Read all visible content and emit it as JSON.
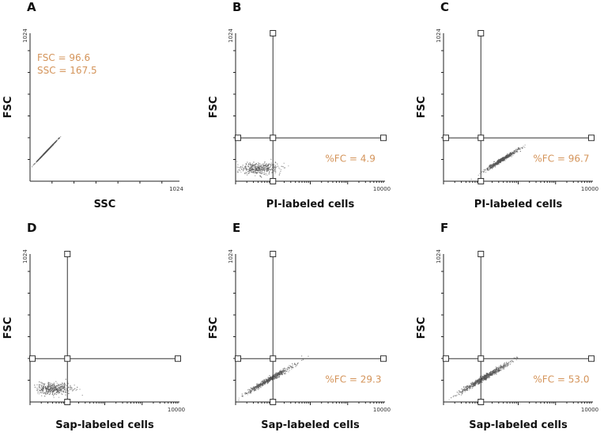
{
  "chart_data": [
    {
      "type": "scatter",
      "panel": "A",
      "xlabel": "SSC",
      "ylabel": "FSC",
      "x_scale": "linear",
      "xlim": [
        0,
        1024
      ],
      "ylim": [
        0,
        1024
      ],
      "x_max_label": "1024",
      "y_max_label": "1024",
      "annotations": [
        "FSC = 96.6",
        "SSC = 167.5"
      ],
      "population": {
        "x_center": 110,
        "y_center": 210,
        "x_spread": 95,
        "y_spread": 95,
        "shape": "diagonal",
        "n": 650
      },
      "gate": null
    },
    {
      "type": "scatter",
      "panel": "B",
      "xlabel": "PI-labeled cells",
      "ylabel": "FSC",
      "x_scale": "log",
      "xlim": [
        1,
        10000
      ],
      "ylim": [
        0,
        1024
      ],
      "x_max_label": "10000",
      "y_max_label": "1024",
      "annotations": [
        "%FC = 4.9"
      ],
      "population": {
        "x_center": 4,
        "y_center": 90,
        "x_spread": 0.5,
        "y_spread": 60,
        "shape": "flat",
        "n": 420
      },
      "gate": {
        "x": 10,
        "y": 300
      }
    },
    {
      "type": "scatter",
      "panel": "C",
      "xlabel": "PI-labeled cells",
      "ylabel": "FSC",
      "x_scale": "log",
      "xlim": [
        1,
        10000
      ],
      "ylim": [
        0,
        1024
      ],
      "x_max_label": "10000",
      "y_max_label": "1024",
      "annotations": [
        "%FC = 96.7"
      ],
      "population": {
        "x_center": 35,
        "y_center": 150,
        "x_spread": 0.5,
        "y_spread": 80,
        "shape": "diagonal",
        "n": 560
      },
      "gate": {
        "x": 10,
        "y": 300
      }
    },
    {
      "type": "scatter",
      "panel": "D",
      "xlabel": "Sap-labeled cells",
      "ylabel": "FSC",
      "x_scale": "log",
      "xlim": [
        1,
        10000
      ],
      "ylim": [
        0,
        1024
      ],
      "x_max_label": "10000",
      "y_max_label": "1024",
      "annotations": [],
      "population": {
        "x_center": 4,
        "y_center": 95,
        "x_spread": 0.45,
        "y_spread": 60,
        "shape": "flat",
        "n": 420
      },
      "gate": {
        "x": 10,
        "y": 300
      }
    },
    {
      "type": "scatter",
      "panel": "E",
      "xlabel": "Sap-labeled cells",
      "ylabel": "FSC",
      "x_scale": "log",
      "xlim": [
        1,
        10000
      ],
      "ylim": [
        0,
        1024
      ],
      "x_max_label": "10000",
      "y_max_label": "1024",
      "annotations": [
        "%FC = 29.3"
      ],
      "population": {
        "x_center": 8,
        "y_center": 160,
        "x_spread": 0.65,
        "y_spread": 100,
        "shape": "diagonal",
        "n": 620
      },
      "gate": {
        "x": 10,
        "y": 300
      }
    },
    {
      "type": "scatter",
      "panel": "F",
      "xlabel": "Sap-labeled cells",
      "ylabel": "FSC",
      "x_scale": "log",
      "xlim": [
        1,
        10000
      ],
      "ylim": [
        0,
        1024
      ],
      "x_max_label": "10000",
      "y_max_label": "1024",
      "annotations": [
        "%FC = 53.0"
      ],
      "population": {
        "x_center": 12,
        "y_center": 170,
        "x_spread": 0.7,
        "y_spread": 110,
        "shape": "diagonal",
        "n": 680
      },
      "gate": {
        "x": 10,
        "y": 300
      }
    }
  ]
}
